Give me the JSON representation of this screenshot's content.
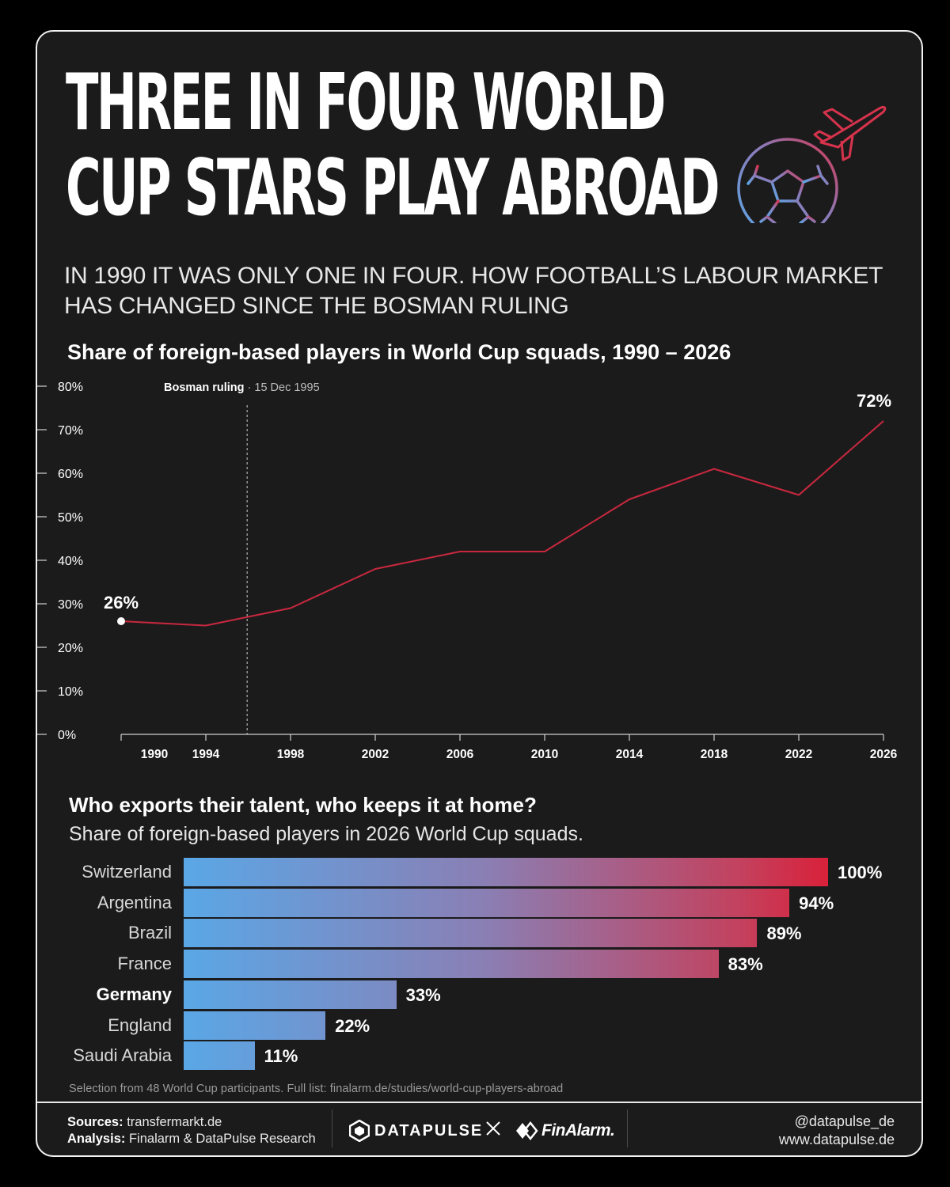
{
  "headline": [
    "THREE IN FOUR WORLD",
    "CUP STARS PLAY ABROAD"
  ],
  "subtitle": "IN 1990 IT WAS ONLY ONE IN FOUR. HOW FOOTBALL’S LABOUR MARKET HAS CHANGED SINCE THE BOSMAN RULING",
  "line_chart_title": "Share of foreign-based players in World Cup squads, 1990 – 2026",
  "bars_title": "Who exports their talent, who keeps it at home?",
  "bars_subtitle": "Share of foreign-based players in 2026 World Cup squads.",
  "footnote": "Selection from 48 World Cup participants. Full list: finalarm.de/studies/world-cup-players-abroad",
  "footer": {
    "sources_label": "Sources:",
    "sources_value": "transfermarkt.de",
    "analysis_label": "Analysis:",
    "analysis_value": "Finalarm & DataPulse Research",
    "brand_left": "DATAPULSE",
    "brand_right": "FinAlarm.",
    "handle": "@datapulse_de",
    "website": "www.datapulse.de"
  },
  "colors": {
    "background": "#1c1b1c",
    "line": "#c8283e",
    "bar_start": "#5aa7e6",
    "bar_end": "#d9213a"
  },
  "icons": [
    "airplane-icon",
    "football-icon",
    "datapulse-logo-icon",
    "finalarm-logo-icon"
  ],
  "chart_data": [
    {
      "type": "line",
      "title": "Share of foreign-based players in World Cup squads, 1990 – 2026",
      "x": [
        1990,
        1994,
        1998,
        2002,
        2006,
        2010,
        2014,
        2018,
        2022,
        2026
      ],
      "x_ticks": [
        "1990",
        "1994",
        "1998",
        "2002",
        "2006",
        "2010",
        "2014",
        "2018",
        "2022",
        "2026"
      ],
      "values": [
        26,
        25,
        29,
        38,
        42,
        42,
        54,
        61,
        55,
        72
      ],
      "y_ticks": [
        "0%",
        "10%",
        "20%",
        "30%",
        "40%",
        "50%",
        "60%",
        "70%",
        "80%"
      ],
      "ylim": [
        0,
        80
      ],
      "start_label": "26%",
      "end_label": "72%",
      "annotation": {
        "label": "Bosman ruling",
        "date_text": "· 15 Dec 1995",
        "x": 1995.95
      },
      "grid": false
    },
    {
      "type": "bar",
      "orientation": "horizontal",
      "title": "Who exports their talent, who keeps it at home?",
      "subtitle": "Share of foreign-based players in 2026 World Cup squads.",
      "categories": [
        "Switzerland",
        "Argentina",
        "Brazil",
        "France",
        "Germany",
        "England",
        "Saudi Arabia"
      ],
      "values": [
        100,
        94,
        89,
        83,
        33,
        22,
        11
      ],
      "value_labels": [
        "100%",
        "94%",
        "89%",
        "83%",
        "33%",
        "22%",
        "11%"
      ],
      "highlight": "Germany",
      "xlim": [
        0,
        100
      ]
    }
  ]
}
